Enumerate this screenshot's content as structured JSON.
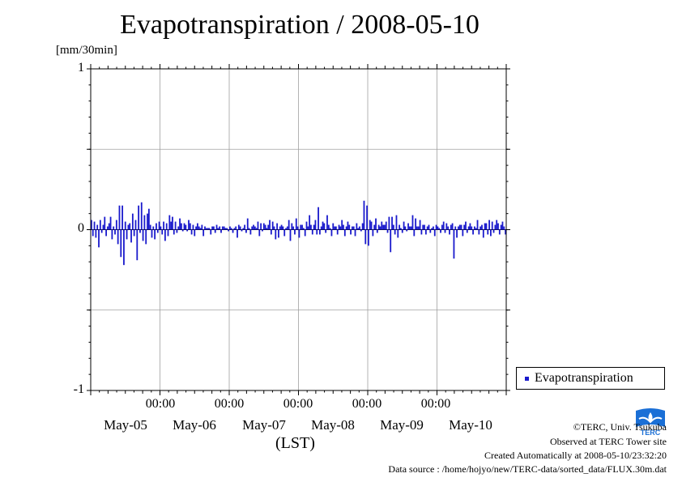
{
  "title": "Evapotranspiration / 2008-05-10",
  "unit": "[mm/30min]",
  "chart_data": {
    "type": "bar",
    "title": "Evapotranspiration / 2008-05-10",
    "ylabel": "[mm/30min]",
    "xlabel": "(LST)",
    "ylim": [
      -1,
      1
    ],
    "yticks": [
      "1",
      "0",
      "-1"
    ],
    "xticks_time": [
      "00:00",
      "00:00",
      "00:00",
      "00:00",
      "00:00"
    ],
    "xticks_date": [
      "May-05",
      "May-06",
      "May-07",
      "May-08",
      "May-09",
      "May-10"
    ],
    "grid": true,
    "legend_position": "right",
    "series": [
      {
        "name": "Evapotranspiration",
        "color": "#1a1acc",
        "values": [
          0.06,
          -0.04,
          0.05,
          -0.05,
          0.03,
          -0.11,
          0.06,
          -0.02,
          0.03,
          0.08,
          -0.04,
          0.02,
          0.04,
          0.08,
          -0.06,
          0.02,
          -0.03,
          0.06,
          -0.09,
          0.15,
          -0.17,
          0.15,
          -0.22,
          0.05,
          -0.06,
          0.03,
          0.04,
          -0.08,
          0.1,
          -0.04,
          0.06,
          -0.19,
          0.15,
          -0.02,
          0.17,
          -0.07,
          0.09,
          -0.09,
          0.1,
          0.13,
          0.03,
          -0.05,
          0.02,
          -0.06,
          0.04,
          -0.02,
          0.05,
          0.02,
          -0.03,
          0.05,
          -0.07,
          0.04,
          -0.04,
          0.09,
          0.05,
          0.08,
          -0.03,
          0.05,
          -0.02,
          0.02,
          0.07,
          0.04,
          -0.01,
          0.04,
          0.03,
          -0.01,
          0.06,
          0.04,
          -0.03,
          0.03,
          -0.04,
          0.02,
          0.04,
          0.02,
          0.01,
          0.03,
          -0.04,
          0.02,
          0.01,
          0.01,
          0.01,
          -0.03,
          0.02,
          0.02,
          -0.02,
          0.03,
          0.01,
          0.02,
          -0.02,
          0.02,
          0.02,
          0.01,
          0.01,
          -0.01,
          0.02,
          0.01,
          -0.02,
          0.01,
          0.02,
          -0.05,
          0.03,
          0.02,
          -0.01,
          0.01,
          0.03,
          -0.02,
          0.07,
          0.01,
          -0.03,
          0.02,
          0.03,
          0.02,
          0.01,
          0.05,
          -0.04,
          0.04,
          -0.01,
          0.04,
          0.03,
          0.01,
          0.03,
          0.06,
          -0.03,
          0.05,
          0.02,
          -0.06,
          0.04,
          -0.05,
          0.02,
          0.03,
          0.02,
          -0.04,
          0.01,
          0.02,
          0.06,
          -0.07,
          0.04,
          0.02,
          -0.03,
          0.07,
          0.02,
          -0.05,
          0.03,
          0.03,
          0.01,
          -0.04,
          0.05,
          0.02,
          0.09,
          0.03,
          -0.03,
          0.03,
          0.06,
          -0.03,
          0.14,
          -0.03,
          0.02,
          0.05,
          0.04,
          -0.02,
          0.09,
          0.03,
          0.01,
          -0.04,
          0.04,
          0.02,
          0.02,
          -0.03,
          0.03,
          0.02,
          0.06,
          0.03,
          -0.04,
          0.02,
          0.05,
          0.03,
          -0.03,
          0.02,
          0.02,
          -0.04,
          0.04,
          0.01,
          0.02,
          -0.01,
          0.04,
          0.18,
          -0.09,
          0.15,
          -0.1,
          0.06,
          0.05,
          -0.04,
          0.03,
          0.07,
          -0.02,
          0.03,
          0.02,
          0.05,
          0.03,
          0.03,
          0.05,
          -0.02,
          0.08,
          -0.14,
          0.08,
          0.03,
          -0.03,
          0.09,
          -0.05,
          0.03,
          0.01,
          -0.02,
          0.05,
          0.02,
          -0.01,
          0.04,
          0.02,
          0.02,
          0.09,
          -0.04,
          0.07,
          0.02,
          0.02,
          0.06,
          -0.03,
          0.03,
          0.03,
          -0.03,
          0.02,
          0.03,
          -0.02,
          0.01,
          0.02,
          -0.04,
          0.03,
          0.02,
          0.01,
          -0.02,
          0.03,
          0.05,
          -0.02,
          0.04,
          0.02,
          -0.03,
          0.03,
          0.04,
          -0.18,
          0.02,
          -0.05,
          0.02,
          0.03,
          0.03,
          -0.04,
          0.03,
          0.05,
          -0.02,
          0.02,
          0.04,
          0.02,
          -0.03,
          0.02,
          0.01,
          0.06,
          -0.03,
          0.02,
          0.03,
          -0.05,
          0.04,
          0.04,
          -0.03,
          0.06,
          -0.04,
          0.05,
          -0.02,
          0.03,
          0.06,
          0.04,
          -0.03,
          0.03,
          0.05,
          0.02,
          -0.03
        ]
      }
    ]
  },
  "legend": {
    "label": "Evapotranspiration"
  },
  "credits": {
    "copyright": "©TERC, Univ. Tsukuba",
    "observed": "Observed at TERC Tower site",
    "created": "Created Automatically at 2008-05-10/23:32:20",
    "source": "Data source : /home/hojyo/new/TERC-data/sorted_data/FLUX.30m.dat"
  },
  "logo": {
    "text": "TERC",
    "color": "#1a6fd6"
  }
}
